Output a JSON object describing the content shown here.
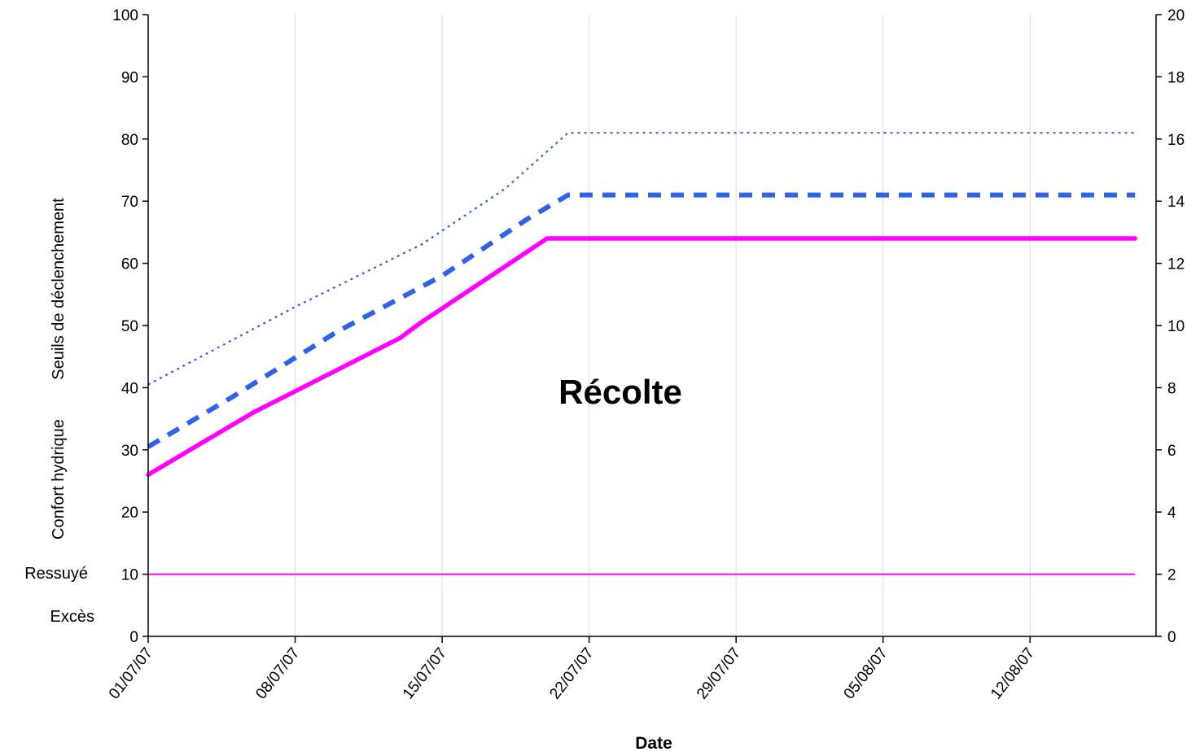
{
  "chart_data": {
    "type": "line",
    "xlabel": "Date",
    "ylabel_lines": [
      "Seuils de déclenchement",
      "Confort hydrique"
    ],
    "zone_labels": [
      "Ressuyé",
      "Excès"
    ],
    "annotation": "Récolte",
    "x_ticks": [
      "01/07/07",
      "08/07/07",
      "15/07/07",
      "22/07/07",
      "29/07/07",
      "05/08/07",
      "12/08/07"
    ],
    "y_ticks": [
      "0",
      "10",
      "20",
      "30",
      "40",
      "50",
      "60",
      "70",
      "80",
      "90",
      "100"
    ],
    "y2_ticks": [
      "0",
      "2",
      "4",
      "6",
      "8",
      "10",
      "12",
      "14",
      "16",
      "18",
      "20"
    ],
    "xlim": [
      "2007-07-01",
      "2007-08-18"
    ],
    "ylim": [
      0,
      100
    ],
    "y2lim": [
      0,
      20
    ],
    "grid": "vertical",
    "series": [
      {
        "style": "dotted-thin",
        "color": "#2f62e6",
        "x": [
          "2007-07-01",
          "2007-07-08",
          "2007-07-14",
          "2007-07-18",
          "2007-07-21",
          "2007-08-17"
        ],
        "y": [
          40.5,
          53,
          63,
          72,
          81,
          81
        ]
      },
      {
        "style": "dashed-thick",
        "color": "#2f62e6",
        "x": [
          "2007-07-01",
          "2007-07-05",
          "2007-07-10",
          "2007-07-15",
          "2007-07-19",
          "2007-07-21",
          "2007-08-17"
        ],
        "y": [
          30.5,
          38.5,
          49,
          58,
          67,
          71,
          71
        ]
      },
      {
        "style": "solid-thick",
        "color": "#ff00ff",
        "x": [
          "2007-07-01",
          "2007-07-05",
          "2007-07-06",
          "2007-07-13",
          "2007-07-14",
          "2007-07-20",
          "2007-08-17"
        ],
        "y": [
          26,
          34,
          36,
          48,
          50.5,
          64,
          64
        ]
      },
      {
        "style": "solid-thin",
        "color": "#ff00ff",
        "x": [
          "2007-07-01",
          "2007-08-17"
        ],
        "y": [
          10,
          10
        ]
      }
    ]
  }
}
